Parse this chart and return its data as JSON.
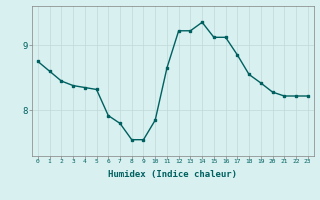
{
  "xlabel": "Humidex (Indice chaleur)",
  "x": [
    0,
    1,
    2,
    3,
    4,
    5,
    6,
    7,
    8,
    9,
    10,
    11,
    12,
    13,
    14,
    15,
    16,
    17,
    18,
    19,
    20,
    21,
    22,
    23
  ],
  "y": [
    8.75,
    8.6,
    8.45,
    8.38,
    8.35,
    8.32,
    7.92,
    7.8,
    7.55,
    7.55,
    7.85,
    8.65,
    9.22,
    9.22,
    9.35,
    9.12,
    9.12,
    8.85,
    8.55,
    8.42,
    8.28,
    8.22,
    8.22,
    8.22
  ],
  "line_color": "#006060",
  "bg_color": "#d8f0f0",
  "grid_color": "#c0d8d8",
  "yticks": [
    8,
    9
  ],
  "ylim": [
    7.3,
    9.6
  ],
  "xlim": [
    -0.5,
    23.5
  ],
  "figsize": [
    3.2,
    2.0
  ],
  "dpi": 100
}
